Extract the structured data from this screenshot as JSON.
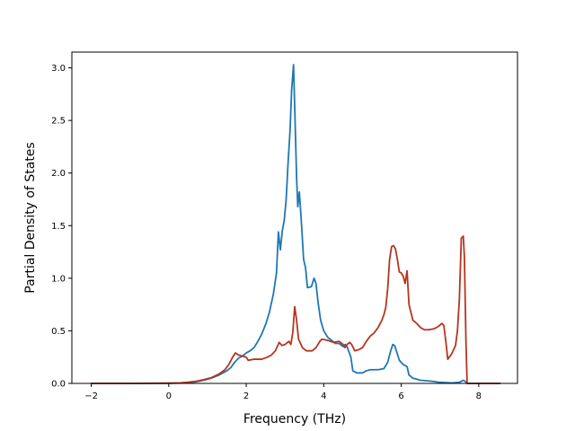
{
  "chart_data": {
    "type": "line",
    "title": "",
    "xlabel": "Frequency (THz)",
    "ylabel": "Partial Density of States",
    "xlim": [
      -2.5,
      9.0
    ],
    "ylim": [
      0.0,
      3.15
    ],
    "xticks": [
      -2,
      0,
      2,
      4,
      6,
      8
    ],
    "yticks": [
      0.0,
      0.5,
      1.0,
      1.5,
      2.0,
      2.5,
      3.0
    ],
    "xtick_labels": [
      "−2",
      "0",
      "2",
      "4",
      "6",
      "8"
    ],
    "ytick_labels": [
      "0.0",
      "0.5",
      "1.0",
      "1.5",
      "2.0",
      "2.5",
      "3.0"
    ],
    "grid": false,
    "legend": "none",
    "series": [
      {
        "color": "#1f77b4",
        "points": [
          [
            -2.0,
            0.0
          ],
          [
            -1.0,
            0.0
          ],
          [
            0.0,
            0.0
          ],
          [
            0.3,
            0.003
          ],
          [
            0.5,
            0.008
          ],
          [
            0.7,
            0.015
          ],
          [
            0.9,
            0.03
          ],
          [
            1.1,
            0.05
          ],
          [
            1.3,
            0.08
          ],
          [
            1.5,
            0.12
          ],
          [
            1.6,
            0.15
          ],
          [
            1.7,
            0.2
          ],
          [
            1.8,
            0.24
          ],
          [
            1.9,
            0.26
          ],
          [
            2.0,
            0.29
          ],
          [
            2.1,
            0.31
          ],
          [
            2.2,
            0.34
          ],
          [
            2.3,
            0.4
          ],
          [
            2.4,
            0.47
          ],
          [
            2.5,
            0.56
          ],
          [
            2.6,
            0.68
          ],
          [
            2.7,
            0.85
          ],
          [
            2.78,
            1.05
          ],
          [
            2.83,
            1.44
          ],
          [
            2.88,
            1.27
          ],
          [
            2.93,
            1.45
          ],
          [
            2.98,
            1.55
          ],
          [
            3.03,
            1.75
          ],
          [
            3.08,
            2.1
          ],
          [
            3.13,
            2.4
          ],
          [
            3.17,
            2.78
          ],
          [
            3.22,
            3.03
          ],
          [
            3.26,
            2.5
          ],
          [
            3.3,
            1.95
          ],
          [
            3.33,
            1.68
          ],
          [
            3.37,
            1.82
          ],
          [
            3.42,
            1.55
          ],
          [
            3.48,
            1.18
          ],
          [
            3.53,
            1.1
          ],
          [
            3.58,
            0.91
          ],
          [
            3.68,
            0.92
          ],
          [
            3.75,
            1.0
          ],
          [
            3.8,
            0.95
          ],
          [
            3.85,
            0.78
          ],
          [
            3.92,
            0.6
          ],
          [
            4.0,
            0.5
          ],
          [
            4.1,
            0.44
          ],
          [
            4.2,
            0.41
          ],
          [
            4.3,
            0.38
          ],
          [
            4.4,
            0.38
          ],
          [
            4.5,
            0.35
          ],
          [
            4.55,
            0.37
          ],
          [
            4.6,
            0.35
          ],
          [
            4.7,
            0.25
          ],
          [
            4.75,
            0.12
          ],
          [
            4.85,
            0.1
          ],
          [
            5.0,
            0.1
          ],
          [
            5.1,
            0.12
          ],
          [
            5.2,
            0.13
          ],
          [
            5.4,
            0.13
          ],
          [
            5.55,
            0.14
          ],
          [
            5.65,
            0.2
          ],
          [
            5.72,
            0.3
          ],
          [
            5.78,
            0.37
          ],
          [
            5.83,
            0.36
          ],
          [
            5.9,
            0.28
          ],
          [
            5.95,
            0.22
          ],
          [
            6.05,
            0.18
          ],
          [
            6.15,
            0.16
          ],
          [
            6.2,
            0.08
          ],
          [
            6.3,
            0.05
          ],
          [
            6.5,
            0.03
          ],
          [
            6.8,
            0.02
          ],
          [
            7.0,
            0.01
          ],
          [
            7.3,
            0.005
          ],
          [
            7.5,
            0.01
          ],
          [
            7.6,
            0.03
          ],
          [
            7.65,
            0.02
          ],
          [
            7.7,
            0.0
          ],
          [
            8.0,
            0.0
          ],
          [
            8.55,
            0.0
          ]
        ]
      },
      {
        "color": "#b5351f",
        "points": [
          [
            -2.0,
            0.0
          ],
          [
            -1.0,
            0.0
          ],
          [
            0.0,
            0.003
          ],
          [
            0.3,
            0.005
          ],
          [
            0.5,
            0.012
          ],
          [
            0.7,
            0.02
          ],
          [
            0.9,
            0.035
          ],
          [
            1.1,
            0.055
          ],
          [
            1.3,
            0.09
          ],
          [
            1.45,
            0.13
          ],
          [
            1.55,
            0.18
          ],
          [
            1.65,
            0.25
          ],
          [
            1.72,
            0.29
          ],
          [
            1.8,
            0.27
          ],
          [
            1.9,
            0.26
          ],
          [
            2.0,
            0.25
          ],
          [
            2.05,
            0.22
          ],
          [
            2.2,
            0.23
          ],
          [
            2.4,
            0.23
          ],
          [
            2.55,
            0.25
          ],
          [
            2.65,
            0.27
          ],
          [
            2.75,
            0.31
          ],
          [
            2.85,
            0.39
          ],
          [
            2.92,
            0.36
          ],
          [
            3.0,
            0.37
          ],
          [
            3.1,
            0.4
          ],
          [
            3.15,
            0.37
          ],
          [
            3.2,
            0.48
          ],
          [
            3.25,
            0.73
          ],
          [
            3.3,
            0.6
          ],
          [
            3.35,
            0.42
          ],
          [
            3.45,
            0.34
          ],
          [
            3.55,
            0.31
          ],
          [
            3.7,
            0.31
          ],
          [
            3.8,
            0.34
          ],
          [
            3.9,
            0.4
          ],
          [
            3.95,
            0.42
          ],
          [
            4.1,
            0.41
          ],
          [
            4.25,
            0.39
          ],
          [
            4.4,
            0.4
          ],
          [
            4.5,
            0.37
          ],
          [
            4.55,
            0.34
          ],
          [
            4.6,
            0.37
          ],
          [
            4.67,
            0.39
          ],
          [
            4.72,
            0.37
          ],
          [
            4.8,
            0.31
          ],
          [
            4.9,
            0.32
          ],
          [
            5.0,
            0.34
          ],
          [
            5.1,
            0.4
          ],
          [
            5.2,
            0.45
          ],
          [
            5.3,
            0.48
          ],
          [
            5.4,
            0.53
          ],
          [
            5.5,
            0.6
          ],
          [
            5.55,
            0.65
          ],
          [
            5.6,
            0.72
          ],
          [
            5.65,
            0.9
          ],
          [
            5.7,
            1.18
          ],
          [
            5.75,
            1.3
          ],
          [
            5.8,
            1.31
          ],
          [
            5.85,
            1.28
          ],
          [
            5.9,
            1.18
          ],
          [
            5.95,
            1.06
          ],
          [
            6.0,
            1.05
          ],
          [
            6.05,
            1.02
          ],
          [
            6.1,
            0.95
          ],
          [
            6.15,
            1.07
          ],
          [
            6.2,
            0.75
          ],
          [
            6.3,
            0.6
          ],
          [
            6.4,
            0.57
          ],
          [
            6.5,
            0.53
          ],
          [
            6.6,
            0.51
          ],
          [
            6.7,
            0.51
          ],
          [
            6.85,
            0.52
          ],
          [
            6.95,
            0.54
          ],
          [
            7.05,
            0.57
          ],
          [
            7.1,
            0.55
          ],
          [
            7.15,
            0.4
          ],
          [
            7.2,
            0.23
          ],
          [
            7.3,
            0.28
          ],
          [
            7.4,
            0.36
          ],
          [
            7.45,
            0.5
          ],
          [
            7.5,
            0.8
          ],
          [
            7.55,
            1.38
          ],
          [
            7.6,
            1.4
          ],
          [
            7.63,
            1.2
          ],
          [
            7.67,
            0.4
          ],
          [
            7.7,
            0.0
          ],
          [
            8.0,
            0.0
          ],
          [
            8.55,
            0.0
          ]
        ]
      }
    ]
  }
}
